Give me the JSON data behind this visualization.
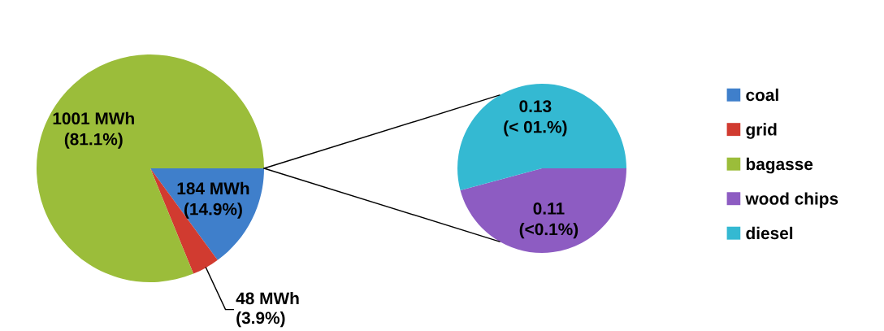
{
  "chart_data": [
    {
      "type": "pie",
      "categories": [
        "coal",
        "grid",
        "bagasse"
      ],
      "values": [
        184,
        48,
        1001
      ],
      "colors": [
        "#3f7fcb",
        "#d13b30",
        "#9bbd3a"
      ],
      "value_labels": [
        "184 MWh\n(14.9%)",
        "48 MWh\n(3.9%)",
        "1001 MWh\n(81.1%)"
      ],
      "legend": "right"
    },
    {
      "type": "pie",
      "categories": [
        "wood chips",
        "diesel"
      ],
      "values": [
        0.11,
        0.13
      ],
      "colors": [
        "#8d5cc2",
        "#34b9d2"
      ],
      "value_labels": [
        "0.11\n(<0.1%)",
        "0.13\n(< 01.%)"
      ],
      "legend": "right"
    }
  ]
}
